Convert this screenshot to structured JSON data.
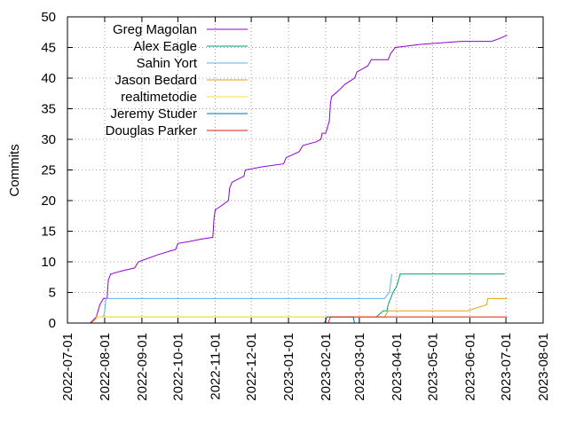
{
  "chart_data": {
    "type": "line",
    "title": "",
    "xlabel": "",
    "ylabel": "Commits",
    "xlim": [
      "2022-07-01",
      "2023-08-01"
    ],
    "ylim": [
      0,
      50
    ],
    "grid": true,
    "legend_position": "top-left",
    "x_ticks": [
      "2022-07-01",
      "2022-08-01",
      "2022-09-01",
      "2022-10-01",
      "2022-11-01",
      "2022-12-01",
      "2023-01-01",
      "2023-02-01",
      "2023-03-01",
      "2023-04-01",
      "2023-05-01",
      "2023-06-01",
      "2023-07-01",
      "2023-08-01"
    ],
    "y_ticks": [
      0,
      5,
      10,
      15,
      20,
      25,
      30,
      35,
      40,
      45,
      50
    ],
    "series": [
      {
        "name": "Greg Magolan",
        "color": "#9400d3",
        "points": [
          [
            "2022-07-20",
            0
          ],
          [
            "2022-07-25",
            1
          ],
          [
            "2022-07-28",
            3
          ],
          [
            "2022-07-31",
            4
          ],
          [
            "2022-08-03",
            4
          ],
          [
            "2022-08-04",
            7
          ],
          [
            "2022-08-06",
            8
          ],
          [
            "2022-08-15",
            8.5
          ],
          [
            "2022-08-26",
            9
          ],
          [
            "2022-08-29",
            10
          ],
          [
            "2022-09-05",
            10.5
          ],
          [
            "2022-09-15",
            11.2
          ],
          [
            "2022-09-25",
            11.8
          ],
          [
            "2022-09-29",
            12
          ],
          [
            "2022-10-01",
            13
          ],
          [
            "2022-10-10",
            13.3
          ],
          [
            "2022-10-20",
            13.7
          ],
          [
            "2022-10-30",
            14
          ],
          [
            "2022-10-31",
            17
          ],
          [
            "2022-11-01",
            18.5
          ],
          [
            "2022-11-05",
            19
          ],
          [
            "2022-11-12",
            20
          ],
          [
            "2022-11-13",
            22
          ],
          [
            "2022-11-15",
            23
          ],
          [
            "2022-11-25",
            24
          ],
          [
            "2022-11-26",
            25
          ],
          [
            "2022-12-10",
            25.5
          ],
          [
            "2022-12-28",
            26
          ],
          [
            "2022-12-30",
            27
          ],
          [
            "2023-01-10",
            28
          ],
          [
            "2023-01-13",
            29
          ],
          [
            "2023-01-24",
            29.6
          ],
          [
            "2023-01-28",
            30
          ],
          [
            "2023-01-29",
            31
          ],
          [
            "2023-02-01",
            31
          ],
          [
            "2023-02-04",
            33
          ],
          [
            "2023-02-05",
            36
          ],
          [
            "2023-02-06",
            37
          ],
          [
            "2023-02-12",
            38
          ],
          [
            "2023-02-17",
            39
          ],
          [
            "2023-02-25",
            40
          ],
          [
            "2023-02-27",
            41
          ],
          [
            "2023-03-08",
            42
          ],
          [
            "2023-03-11",
            43
          ],
          [
            "2023-03-25",
            43
          ],
          [
            "2023-03-27",
            44
          ],
          [
            "2023-03-31",
            45
          ],
          [
            "2023-04-20",
            45.5
          ],
          [
            "2023-05-25",
            46
          ],
          [
            "2023-06-19",
            46
          ],
          [
            "2023-06-25",
            46.4
          ],
          [
            "2023-07-02",
            47
          ]
        ]
      },
      {
        "name": "Alex Eagle",
        "color": "#009e73",
        "points": [
          [
            "2023-03-15",
            1
          ],
          [
            "2023-03-21",
            2
          ],
          [
            "2023-03-24",
            2
          ],
          [
            "2023-03-25",
            3
          ],
          [
            "2023-03-29",
            5
          ],
          [
            "2023-04-01",
            6
          ],
          [
            "2023-04-04",
            8
          ],
          [
            "2023-06-30",
            8
          ]
        ]
      },
      {
        "name": "Sahin Yort",
        "color": "#56b4e9",
        "points": [
          [
            "2022-07-31",
            1
          ],
          [
            "2022-08-01",
            2
          ],
          [
            "2022-08-02",
            4
          ],
          [
            "2023-03-22",
            4
          ],
          [
            "2023-03-26",
            5
          ],
          [
            "2023-03-28",
            8
          ]
        ]
      },
      {
        "name": "Jason Bedard",
        "color": "#e69f00",
        "points": [
          [
            "2022-07-21",
            0
          ],
          [
            "2022-07-26",
            1
          ],
          [
            "2023-03-22",
            1
          ],
          [
            "2023-03-25",
            2
          ],
          [
            "2023-05-30",
            2
          ],
          [
            "2023-06-15",
            3
          ],
          [
            "2023-06-16",
            4
          ],
          [
            "2023-07-02",
            4
          ]
        ]
      },
      {
        "name": "realtimetodie",
        "color": "#f0e442",
        "points": [
          [
            "2022-07-24",
            1
          ],
          [
            "2023-02-20",
            1
          ]
        ]
      },
      {
        "name": "Jeremy Studer",
        "color": "#0072b2",
        "points": [
          [
            "2023-01-31",
            0
          ],
          [
            "2023-02-02",
            1
          ],
          [
            "2023-02-24",
            1
          ],
          [
            "2023-02-25",
            0
          ]
        ]
      },
      {
        "name": "Douglas Parker",
        "color": "#e51e10",
        "points": [
          [
            "2023-02-03",
            0
          ],
          [
            "2023-02-05",
            1
          ],
          [
            "2023-07-02",
            1
          ]
        ]
      }
    ]
  }
}
